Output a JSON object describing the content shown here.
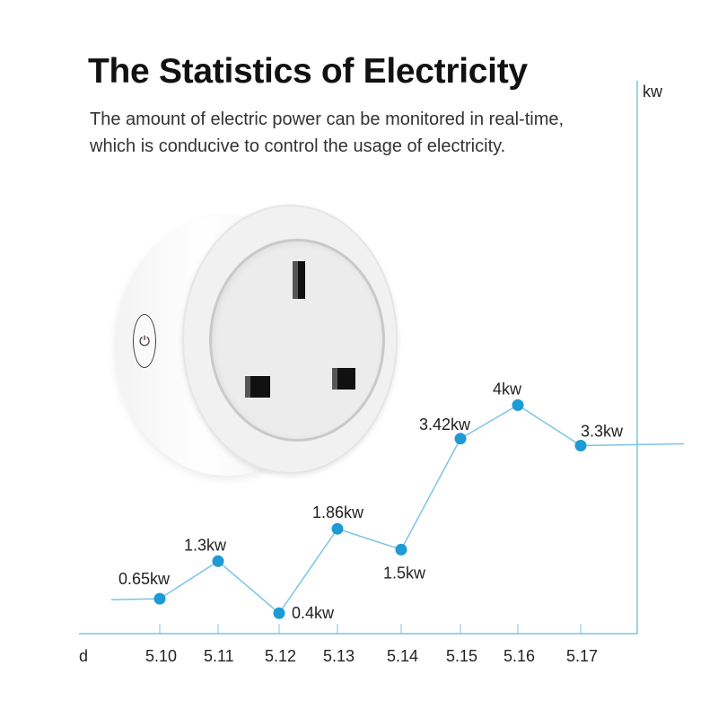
{
  "header": {
    "title": "The Statistics of Electricity",
    "subtitle_line1": "The amount of electric power can be monitored in real-time,",
    "subtitle_line2": "which is conducive to control the usage of electricity."
  },
  "product": {
    "name": "smart-plug",
    "power_button_icon": "power-icon"
  },
  "chart_data": {
    "type": "line",
    "title": "",
    "xlabel": "d",
    "ylabel": "kw",
    "categories": [
      "5.10",
      "5.11",
      "5.12",
      "5.13",
      "5.14",
      "5.15",
      "5.16",
      "5.17"
    ],
    "values": [
      0.65,
      1.3,
      0.4,
      1.86,
      1.5,
      3.42,
      4,
      3.3
    ],
    "data_labels": [
      "0.65kw",
      "1.3kw",
      "0.4kw",
      "1.86kw",
      "1.5kw",
      "3.42kw",
      "4kw",
      "3.3kw"
    ],
    "ylim": [
      0,
      4.5
    ],
    "grid": false,
    "colors": {
      "line": "#7cc4e4",
      "point": "#1e9ad6",
      "axis": "#7cc4e4"
    }
  }
}
